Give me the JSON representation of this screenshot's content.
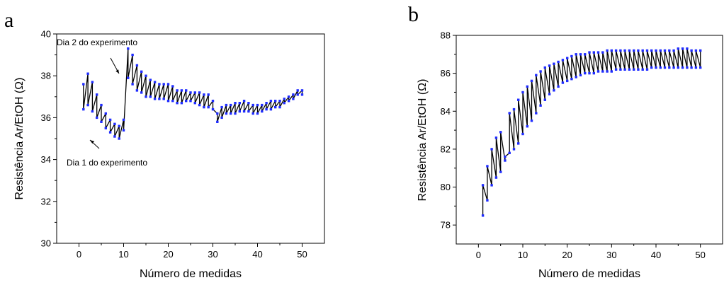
{
  "chart_data": [
    {
      "type": "line",
      "panel_label": "a",
      "xlabel": "Número de medidas",
      "ylabel": "Resistência Ar/EtOH (Ω)",
      "xlim": [
        -5,
        55
      ],
      "ylim": [
        30,
        40
      ],
      "xticks": [
        0,
        10,
        20,
        30,
        40,
        50
      ],
      "yticks": [
        30,
        32,
        34,
        36,
        38,
        40
      ],
      "grid": false,
      "marker_color": "#1f2cff",
      "line_color": "#000000",
      "annotations": [
        {
          "text": "Dia 2 do experimento",
          "x": 10.3,
          "y": 37.9
        },
        {
          "text": "Dia 1 do experimento",
          "x": 8.0,
          "y": 35.3
        }
      ],
      "series": [
        {
          "x": [
            1,
            1,
            2,
            2,
            3,
            3,
            4,
            4,
            5,
            5,
            6,
            6,
            7,
            7,
            8,
            8,
            9,
            9,
            10,
            10,
            11,
            11,
            12,
            12,
            13,
            13,
            14,
            14,
            15,
            15,
            16,
            16,
            17,
            17,
            18,
            18,
            19,
            19,
            20,
            20,
            21,
            21,
            22,
            22,
            23,
            23,
            24,
            24,
            25,
            25,
            26,
            26,
            27,
            27,
            28,
            28,
            29,
            29,
            30,
            30,
            31,
            31,
            32,
            32,
            33,
            33,
            34,
            34,
            35,
            35,
            36,
            36,
            37,
            37,
            38,
            38,
            39,
            39,
            40,
            40,
            41,
            41,
            42,
            42,
            43,
            43,
            44,
            44,
            45,
            45,
            46,
            46,
            47,
            47,
            48,
            48,
            49,
            49,
            50,
            50
          ],
          "y": [
            37.6,
            36.4,
            38.1,
            36.6,
            37.7,
            36.3,
            37.1,
            36.0,
            36.6,
            35.8,
            36.2,
            35.5,
            35.9,
            35.3,
            35.7,
            35.1,
            35.6,
            35.0,
            35.9,
            35.4,
            39.3,
            37.9,
            39.0,
            37.6,
            38.5,
            37.3,
            38.2,
            37.2,
            38.0,
            37.0,
            37.8,
            37.0,
            37.7,
            36.9,
            37.6,
            36.9,
            37.6,
            36.9,
            37.6,
            36.8,
            37.5,
            36.8,
            37.3,
            36.7,
            37.3,
            36.7,
            37.3,
            36.8,
            37.2,
            36.8,
            37.2,
            36.7,
            37.2,
            36.6,
            37.1,
            36.5,
            37.1,
            36.5,
            36.8,
            36.4,
            36.2,
            35.8,
            36.5,
            36.0,
            36.6,
            36.2,
            36.6,
            36.2,
            36.7,
            36.2,
            36.7,
            36.3,
            36.8,
            36.3,
            36.7,
            36.3,
            36.6,
            36.2,
            36.6,
            36.2,
            36.6,
            36.3,
            36.7,
            36.4,
            36.8,
            36.4,
            36.8,
            36.5,
            36.8,
            36.5,
            36.9,
            36.7,
            37.0,
            36.8,
            37.1,
            36.9,
            37.3,
            37.1,
            37.3,
            37.1
          ]
        }
      ]
    },
    {
      "type": "line",
      "panel_label": "b",
      "xlabel": "Número de medidas",
      "ylabel": "Resistência Ar/EtOH (Ω)",
      "xlim": [
        -5,
        55
      ],
      "ylim": [
        77,
        88
      ],
      "xticks": [
        0,
        10,
        20,
        30,
        40,
        50
      ],
      "yticks": [
        78,
        80,
        82,
        84,
        86,
        88
      ],
      "grid": false,
      "marker_color": "#1f2cff",
      "line_color": "#000000",
      "series": [
        {
          "x": [
            1,
            1,
            2,
            2,
            3,
            3,
            4,
            4,
            5,
            5,
            6,
            6,
            7,
            7,
            8,
            8,
            9,
            9,
            10,
            10,
            11,
            11,
            12,
            12,
            13,
            13,
            14,
            14,
            15,
            15,
            16,
            16,
            17,
            17,
            18,
            18,
            19,
            19,
            20,
            20,
            21,
            21,
            22,
            22,
            23,
            23,
            24,
            24,
            25,
            25,
            26,
            26,
            27,
            27,
            28,
            28,
            29,
            29,
            30,
            30,
            31,
            31,
            32,
            32,
            33,
            33,
            34,
            34,
            35,
            35,
            36,
            36,
            37,
            37,
            38,
            38,
            39,
            39,
            40,
            40,
            41,
            41,
            42,
            42,
            43,
            43,
            44,
            44,
            45,
            45,
            46,
            46,
            47,
            47,
            48,
            48,
            49,
            49,
            50,
            50
          ],
          "y": [
            78.5,
            80.1,
            79.3,
            81.1,
            80.1,
            82.0,
            80.5,
            82.6,
            80.8,
            82.9,
            81.4,
            81.6,
            81.8,
            83.9,
            82.0,
            84.1,
            82.3,
            84.6,
            82.8,
            85.0,
            83.2,
            85.3,
            83.5,
            85.6,
            83.9,
            85.9,
            84.3,
            86.1,
            84.6,
            86.3,
            84.9,
            86.4,
            85.1,
            86.5,
            85.3,
            86.6,
            85.5,
            86.7,
            85.6,
            86.8,
            85.7,
            86.9,
            85.8,
            87.0,
            85.9,
            87.0,
            86.0,
            87.0,
            86.0,
            87.1,
            86.0,
            87.1,
            86.1,
            87.1,
            86.1,
            87.1,
            86.1,
            87.2,
            86.1,
            87.2,
            86.2,
            87.2,
            86.2,
            87.2,
            86.2,
            87.2,
            86.2,
            87.2,
            86.2,
            87.2,
            86.2,
            87.2,
            86.2,
            87.2,
            86.2,
            87.2,
            86.3,
            87.2,
            86.3,
            87.2,
            86.3,
            87.2,
            86.3,
            87.2,
            86.3,
            87.2,
            86.3,
            87.2,
            86.3,
            87.3,
            86.3,
            87.3,
            86.3,
            87.3,
            86.3,
            87.2,
            86.3,
            87.2,
            86.3,
            87.2
          ]
        }
      ]
    }
  ]
}
